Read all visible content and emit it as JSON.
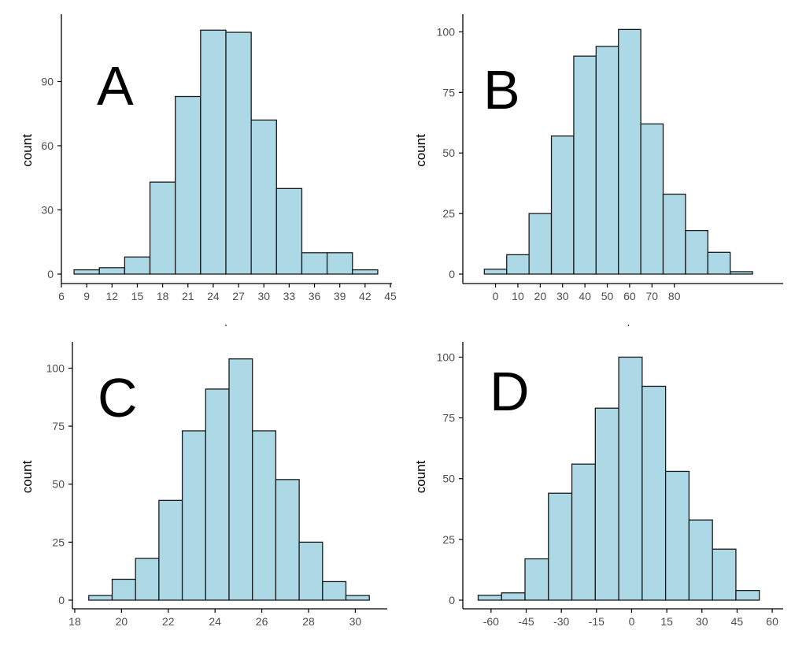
{
  "colors": {
    "bar_fill": "#add8e6",
    "bar_stroke": "#1a1a1a",
    "axis": "#000000",
    "tick_label": "#4d4d4d",
    "panel_letter": "#000000"
  },
  "chart_data": [
    {
      "type": "bar",
      "panel_label": "A",
      "ylabel": "count",
      "xlabel": ".",
      "bin_edges": [
        7.5,
        10.5,
        13.5,
        16.5,
        19.5,
        22.5,
        25.5,
        28.5,
        31.5,
        34.5,
        37.5,
        40.5,
        43.5
      ],
      "values": [
        2,
        3,
        8,
        43,
        83,
        114,
        113,
        72,
        40,
        10,
        10,
        2
      ],
      "xlim": [
        6,
        45
      ],
      "ylim": [
        0,
        120
      ],
      "x_ticks": [
        6,
        9,
        12,
        15,
        18,
        21,
        24,
        27,
        30,
        33,
        36,
        39,
        42,
        45
      ],
      "x_tick_labels": [
        "6",
        "9",
        "12",
        "15",
        "18",
        "21",
        "24",
        "27",
        "30",
        "33",
        "36",
        "39",
        "42",
        "45"
      ],
      "y_ticks": [
        0,
        30,
        60,
        90
      ],
      "y_tick_labels": [
        "0",
        "30",
        "60",
        "90"
      ]
    },
    {
      "type": "bar",
      "panel_label": "B",
      "ylabel": "count",
      "xlabel": ".",
      "bin_edges": [
        -5,
        5,
        15,
        25,
        35,
        45,
        55,
        65,
        75,
        85,
        95,
        105,
        115
      ],
      "values": [
        2,
        8,
        25,
        57,
        90,
        94,
        101,
        62,
        33,
        18,
        9,
        1
      ],
      "xlim": [
        -9,
        128
      ],
      "ylim": [
        0,
        106
      ],
      "x_ticks": [
        0,
        10,
        20,
        30,
        40,
        50,
        60,
        70,
        80
      ],
      "x_tick_labels": [
        "0",
        "10",
        "20",
        "30",
        "40",
        "50",
        "60",
        "70",
        "80"
      ],
      "y_ticks": [
        0,
        25,
        50,
        75,
        100
      ],
      "y_tick_labels": [
        "0",
        "25",
        "50",
        "75",
        "100"
      ]
    },
    {
      "type": "bar",
      "panel_label": "C",
      "ylabel": "count",
      "xlabel": "",
      "bin_edges": [
        18.6,
        19.6,
        20.6,
        21.6,
        22.6,
        23.6,
        24.6,
        25.6,
        26.6,
        27.6,
        28.6,
        29.6,
        30.6
      ],
      "values": [
        2,
        9,
        18,
        43,
        73,
        91,
        104,
        73,
        52,
        25,
        8,
        2
      ],
      "xlim": [
        17.9,
        31.3
      ],
      "ylim": [
        0,
        110
      ],
      "x_ticks": [
        18,
        20,
        22,
        24,
        26,
        28,
        30
      ],
      "x_tick_labels": [
        "18",
        "20",
        "22",
        "24",
        "26",
        "28",
        "30"
      ],
      "y_ticks": [
        0,
        25,
        50,
        75,
        100
      ],
      "y_tick_labels": [
        "0",
        "25",
        "50",
        "75",
        "100"
      ]
    },
    {
      "type": "bar",
      "panel_label": "D",
      "ylabel": "count",
      "xlabel": "",
      "bin_edges": [
        -65.5,
        -55.5,
        -45.5,
        -35.5,
        -25.5,
        -15.5,
        -5.5,
        4.5,
        14.5,
        24.5,
        34.5,
        44.5,
        54.5
      ],
      "values": [
        2,
        3,
        17,
        44,
        56,
        79,
        100,
        88,
        53,
        33,
        21,
        4
      ],
      "xlim": [
        -67,
        64
      ],
      "ylim": [
        0,
        105
      ],
      "x_ticks": [
        -60,
        -45,
        -30,
        -15,
        0,
        15,
        30,
        45,
        60
      ],
      "x_tick_labels": [
        "-60",
        "-45",
        "-30",
        "-15",
        "0",
        "15",
        "30",
        "45",
        "60"
      ],
      "y_ticks": [
        0,
        25,
        50,
        75,
        100
      ],
      "y_tick_labels": [
        "0",
        "25",
        "50",
        "75",
        "100"
      ]
    }
  ]
}
